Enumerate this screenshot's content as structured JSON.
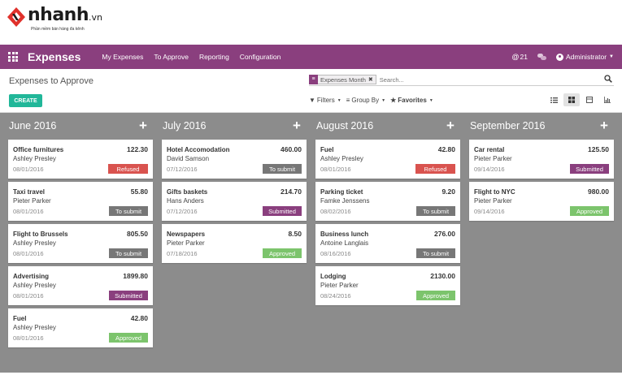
{
  "logo": {
    "brand": "nhanh",
    "suffix": ".vn",
    "tagline": "Phần mềm bán hàng đa kênh",
    "brand_color": "#e0312b"
  },
  "topbar": {
    "app_title": "Expenses",
    "menu": [
      "My Expenses",
      "To Approve",
      "Reporting",
      "Configuration"
    ],
    "notif_count": "21",
    "user": "Administrator",
    "color": "#8a3f7e"
  },
  "control": {
    "breadcrumb": "Expenses to Approve",
    "create_label": "CREATE",
    "facet_label": "Expenses Month",
    "search_placeholder": "Search...",
    "filters_label": "Filters",
    "groupby_label": "Group By",
    "favorites_label": "Favorites"
  },
  "columns": [
    {
      "title": "June 2016",
      "cards": [
        {
          "name": "Office furnitures",
          "amount": "122.30",
          "employee": "Ashley Presley",
          "date": "08/01/2016",
          "status": "Refused",
          "status_type": "refused"
        },
        {
          "name": "Taxi travel",
          "amount": "55.80",
          "employee": "Pieter Parker",
          "date": "08/01/2016",
          "status": "To submit",
          "status_type": "to-submit"
        },
        {
          "name": "Flight to Brussels",
          "amount": "805.50",
          "employee": "Ashley Presley",
          "date": "08/01/2016",
          "status": "To submit",
          "status_type": "to-submit"
        },
        {
          "name": "Advertising",
          "amount": "1899.80",
          "employee": "Ashley Presley",
          "date": "08/01/2016",
          "status": "Submitted",
          "status_type": "submitted"
        },
        {
          "name": "Fuel",
          "amount": "42.80",
          "employee": "Ashley Presley",
          "date": "08/01/2016",
          "status": "Approved",
          "status_type": "approved"
        }
      ]
    },
    {
      "title": "July 2016",
      "cards": [
        {
          "name": "Hotel Accomodation",
          "amount": "460.00",
          "employee": "David Samson",
          "date": "07/12/2016",
          "status": "To submit",
          "status_type": "to-submit"
        },
        {
          "name": "Gifts baskets",
          "amount": "214.70",
          "employee": "Hans Anders",
          "date": "07/12/2016",
          "status": "Submitted",
          "status_type": "submitted"
        },
        {
          "name": "Newspapers",
          "amount": "8.50",
          "employee": "Pieter Parker",
          "date": "07/18/2016",
          "status": "Approved",
          "status_type": "approved"
        }
      ]
    },
    {
      "title": "August 2016",
      "cards": [
        {
          "name": "Fuel",
          "amount": "42.80",
          "employee": "Ashley Presley",
          "date": "08/01/2016",
          "status": "Refused",
          "status_type": "refused"
        },
        {
          "name": "Parking ticket",
          "amount": "9.20",
          "employee": "Famke Jenssens",
          "date": "08/02/2016",
          "status": "To submit",
          "status_type": "to-submit"
        },
        {
          "name": "Business lunch",
          "amount": "276.00",
          "employee": "Antoine Langlais",
          "date": "08/16/2016",
          "status": "To submit",
          "status_type": "to-submit"
        },
        {
          "name": "Lodging",
          "amount": "2130.00",
          "employee": "Pieter Parker",
          "date": "08/24/2016",
          "status": "Approved",
          "status_type": "approved"
        }
      ]
    },
    {
      "title": "September 2016",
      "cards": [
        {
          "name": "Car rental",
          "amount": "125.50",
          "employee": "Pieter Parker",
          "date": "09/14/2016",
          "status": "Submitted",
          "status_type": "submitted"
        },
        {
          "name": "Flight to NYC",
          "amount": "980.00",
          "employee": "Pieter Parker",
          "date": "09/14/2016",
          "status": "Approved",
          "status_type": "approved"
        }
      ]
    }
  ]
}
